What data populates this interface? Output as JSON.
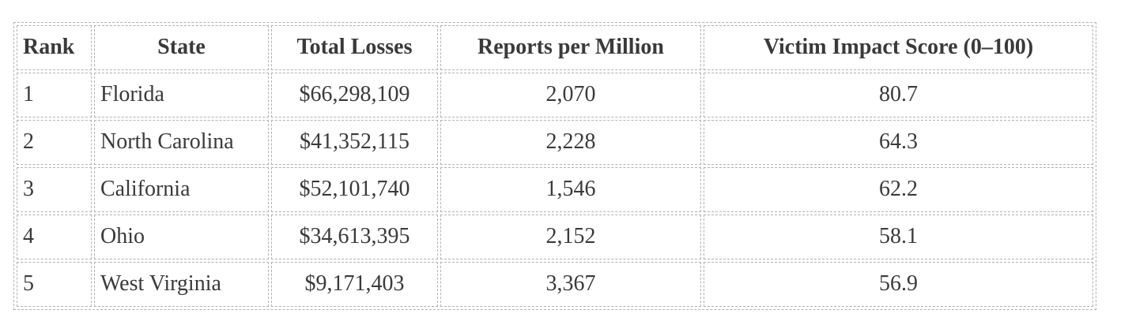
{
  "chart_data": {
    "type": "table",
    "title": "",
    "columns": [
      "Rank",
      "State",
      "Total Losses",
      "Reports per Million",
      "Victim Impact Score (0–100)"
    ],
    "column_align": [
      "left",
      "center",
      "center",
      "center",
      "center"
    ],
    "value_align": [
      "left",
      "left",
      "center",
      "center",
      "center"
    ],
    "rows": [
      [
        "1",
        "Florida",
        "$66,298,109",
        "2,070",
        "80.7"
      ],
      [
        "2",
        "North Carolina",
        "$41,352,115",
        "2,228",
        "64.3"
      ],
      [
        "3",
        "California",
        "$52,101,740",
        "1,546",
        "62.2"
      ],
      [
        "4",
        "Ohio",
        "$34,613,395",
        "2,152",
        "58.1"
      ],
      [
        "5",
        "West Virginia",
        "$9,171,403",
        "3,367",
        "56.9"
      ]
    ],
    "records": [
      {
        "rank": 1,
        "state": "Florida",
        "total_losses_usd": 66298109,
        "reports_per_million": 2070,
        "victim_impact_score": 80.7
      },
      {
        "rank": 2,
        "state": "North Carolina",
        "total_losses_usd": 41352115,
        "reports_per_million": 2228,
        "victim_impact_score": 64.3
      },
      {
        "rank": 3,
        "state": "California",
        "total_losses_usd": 52101740,
        "reports_per_million": 1546,
        "victim_impact_score": 62.2
      },
      {
        "rank": 4,
        "state": "Ohio",
        "total_losses_usd": 34613395,
        "reports_per_million": 2152,
        "victim_impact_score": 58.1
      },
      {
        "rank": 5,
        "state": "West Virginia",
        "total_losses_usd": 9171403,
        "reports_per_million": 3367,
        "victim_impact_score": 56.9
      }
    ],
    "layout_hints": {
      "grid": "dashed cell borders with outer dashed table border",
      "header_style": "bold"
    }
  },
  "colors": {
    "border": "#b2b2b2",
    "text": "#3a3a3a",
    "background": "#ffffff"
  }
}
